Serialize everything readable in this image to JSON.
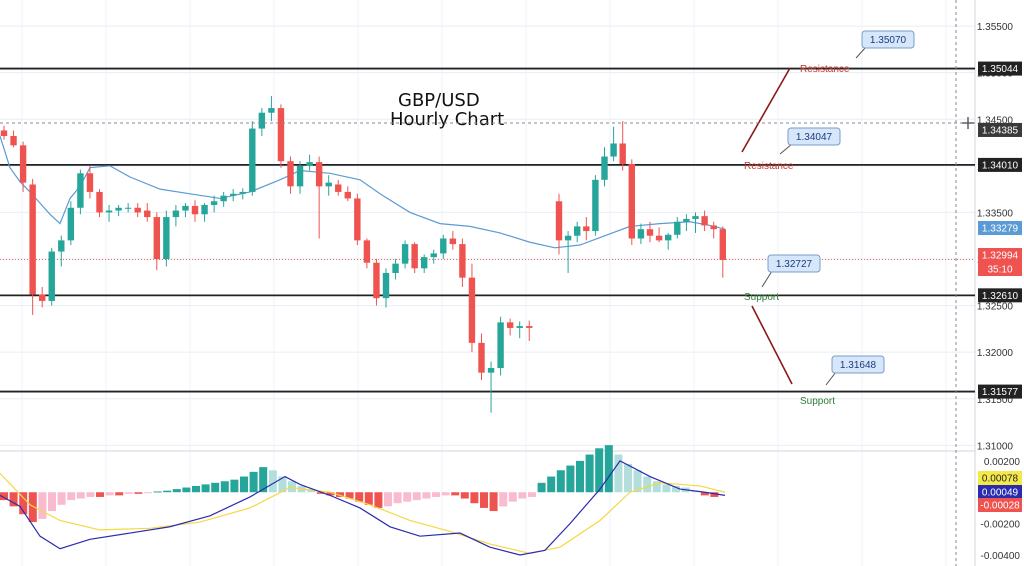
{
  "chart_data": [
    {
      "type": "candlestick",
      "title": [
        "GBP/USD",
        "Hourly Chart"
      ],
      "y_ticks": [
        "1.35500",
        "1.35000",
        "1.34500",
        "1.34000",
        "1.33500",
        "1.33000",
        "1.32500",
        "1.32000",
        "1.31500",
        "1.31000"
      ],
      "ylim": [
        1.3095,
        1.3578
      ],
      "candles": [
        [
          1.3438,
          1.3443,
          1.3428,
          1.3432
        ],
        [
          1.3432,
          1.3438,
          1.342,
          1.3422
        ],
        [
          1.3422,
          1.3426,
          1.3372,
          1.3382
        ],
        [
          1.338,
          1.3386,
          1.324,
          1.3262
        ],
        [
          1.3262,
          1.327,
          1.3248,
          1.3255
        ],
        [
          1.3255,
          1.3312,
          1.325,
          1.3308
        ],
        [
          1.3308,
          1.3325,
          1.3292,
          1.332
        ],
        [
          1.332,
          1.3362,
          1.3315,
          1.3355
        ],
        [
          1.3355,
          1.3396,
          1.3348,
          1.3392
        ],
        [
          1.3392,
          1.34,
          1.3365,
          1.3372
        ],
        [
          1.3372,
          1.3375,
          1.3345,
          1.335
        ],
        [
          1.335,
          1.3358,
          1.334,
          1.3352
        ],
        [
          1.3352,
          1.3358,
          1.3346,
          1.3355
        ],
        [
          1.3355,
          1.336,
          1.335,
          1.3355
        ],
        [
          1.3355,
          1.336,
          1.3345,
          1.335
        ],
        [
          1.3352,
          1.336,
          1.334,
          1.3345
        ],
        [
          1.3345,
          1.335,
          1.3288,
          1.33
        ],
        [
          1.33,
          1.3352,
          1.3292,
          1.3345
        ],
        [
          1.3345,
          1.3358,
          1.3335,
          1.3352
        ],
        [
          1.3352,
          1.336,
          1.3345,
          1.3357
        ],
        [
          1.3357,
          1.3363,
          1.334,
          1.3348
        ],
        [
          1.3348,
          1.336,
          1.334,
          1.3358
        ],
        [
          1.3358,
          1.3368,
          1.335,
          1.3362
        ],
        [
          1.3362,
          1.3372,
          1.3356,
          1.3368
        ],
        [
          1.3368,
          1.3375,
          1.3362,
          1.337
        ],
        [
          1.337,
          1.3376,
          1.3364,
          1.3372
        ],
        [
          1.3372,
          1.3448,
          1.3368,
          1.344
        ],
        [
          1.344,
          1.3462,
          1.3432,
          1.3457
        ],
        [
          1.3457,
          1.3475,
          1.3448,
          1.3462
        ],
        [
          1.3462,
          1.3466,
          1.3398,
          1.3405
        ],
        [
          1.3405,
          1.341,
          1.337,
          1.3378
        ],
        [
          1.3378,
          1.3405,
          1.337,
          1.34
        ],
        [
          1.34,
          1.3412,
          1.3395,
          1.3404
        ],
        [
          1.3404,
          1.341,
          1.3322,
          1.3378
        ],
        [
          1.3378,
          1.339,
          1.3368,
          1.3382
        ],
        [
          1.338,
          1.3385,
          1.3368,
          1.3372
        ],
        [
          1.3372,
          1.3378,
          1.3362,
          1.3365
        ],
        [
          1.3365,
          1.337,
          1.3315,
          1.332
        ],
        [
          1.332,
          1.3322,
          1.329,
          1.3296
        ],
        [
          1.3296,
          1.33,
          1.325,
          1.3258
        ],
        [
          1.3258,
          1.329,
          1.3248,
          1.3285
        ],
        [
          1.3285,
          1.33,
          1.3278,
          1.3295
        ],
        [
          1.3295,
          1.332,
          1.329,
          1.3316
        ],
        [
          1.3316,
          1.3318,
          1.3285,
          1.329
        ],
        [
          1.329,
          1.3305,
          1.3285,
          1.3302
        ],
        [
          1.3302,
          1.331,
          1.3295,
          1.3306
        ],
        [
          1.3306,
          1.3326,
          1.33,
          1.3322
        ],
        [
          1.3322,
          1.333,
          1.331,
          1.3316
        ],
        [
          1.3316,
          1.3322,
          1.327,
          1.328
        ],
        [
          1.328,
          1.3295,
          1.32,
          1.321
        ],
        [
          1.321,
          1.322,
          1.317,
          1.3178
        ],
        [
          1.3178,
          1.319,
          1.3135,
          1.3183
        ],
        [
          1.3183,
          1.3238,
          1.3175,
          1.3232
        ],
        [
          1.3232,
          1.3236,
          1.3218,
          1.3226
        ],
        [
          1.3226,
          1.3233,
          1.3215,
          1.3228
        ],
        [
          1.3228,
          1.3234,
          1.3212,
          1.3226
        ],
        [
          1.3362,
          1.337,
          1.3305,
          1.332
        ],
        [
          1.332,
          1.333,
          1.3285,
          1.3325
        ],
        [
          1.3325,
          1.334,
          1.3318,
          1.3335
        ],
        [
          1.3335,
          1.3345,
          1.332,
          1.333
        ],
        [
          1.333,
          1.339,
          1.3325,
          1.3385
        ],
        [
          1.3385,
          1.342,
          1.3378,
          1.341
        ],
        [
          1.341,
          1.3442,
          1.3405,
          1.3424
        ],
        [
          1.3424,
          1.3448,
          1.3395,
          1.3402
        ],
        [
          1.3402,
          1.3407,
          1.3315,
          1.3322
        ],
        [
          1.3322,
          1.3338,
          1.3316,
          1.3332
        ],
        [
          1.3332,
          1.334,
          1.3318,
          1.3325
        ],
        [
          1.3325,
          1.3334,
          1.3318,
          1.332
        ],
        [
          1.332,
          1.3328,
          1.331,
          1.3326
        ],
        [
          1.3326,
          1.3345,
          1.3322,
          1.334
        ],
        [
          1.334,
          1.3348,
          1.333,
          1.3343
        ],
        [
          1.3343,
          1.335,
          1.3328,
          1.3346
        ],
        [
          1.3346,
          1.3352,
          1.333,
          1.3336
        ],
        [
          1.3336,
          1.334,
          1.3322,
          1.3332
        ],
        [
          1.3332,
          1.3335,
          1.328,
          1.3299
        ]
      ],
      "moving_average": [
        [
          0,
          1.3432
        ],
        [
          10,
          1.3398
        ],
        [
          20,
          1.3383
        ],
        [
          30,
          1.3372
        ],
        [
          40,
          1.336
        ],
        [
          50,
          1.3348
        ],
        [
          60,
          1.3338
        ],
        [
          70,
          1.3365
        ],
        [
          80,
          1.3378
        ],
        [
          90,
          1.3398
        ],
        [
          110,
          1.34
        ],
        [
          130,
          1.3388
        ],
        [
          160,
          1.3375
        ],
        [
          190,
          1.337
        ],
        [
          220,
          1.3365
        ],
        [
          250,
          1.3372
        ],
        [
          280,
          1.3385
        ],
        [
          300,
          1.3395
        ],
        [
          330,
          1.3392
        ],
        [
          360,
          1.3385
        ],
        [
          380,
          1.337
        ],
        [
          410,
          1.335
        ],
        [
          440,
          1.3338
        ],
        [
          470,
          1.3335
        ],
        [
          500,
          1.3328
        ],
        [
          530,
          1.3318
        ],
        [
          555,
          1.3312
        ],
        [
          580,
          1.3315
        ],
        [
          605,
          1.3325
        ],
        [
          630,
          1.3335
        ],
        [
          660,
          1.3338
        ],
        [
          690,
          1.334
        ],
        [
          710,
          1.3336
        ],
        [
          725,
          1.3332
        ]
      ],
      "horizontal_levels": [
        1.35044,
        1.3401,
        1.3261,
        1.31577
      ],
      "dotted_levels": [
        1.34385,
        1.32994
      ],
      "price_labels": [
        "1.35044",
        "1.34385",
        "1.34010",
        "1.33279",
        "1.32994",
        "1.32610",
        "1.31577"
      ],
      "countdown": "35:10",
      "callouts": [
        "1.35070",
        "1.34047",
        "1.32727",
        "1.31648"
      ],
      "annotations": {
        "resistance_top": "Resistance",
        "resistance_mid": "Resistance",
        "support_mid": "Support",
        "support_bottom": "Support"
      },
      "colors": {
        "up": "#26a69a",
        "down": "#ef5350",
        "ma": "#5b9bd5",
        "level": "#222222",
        "trend": "#8b1a1a"
      }
    },
    {
      "type": "histogram",
      "title": "",
      "y_ticks": [
        "0.00200",
        "-0.00200",
        "-0.00400"
      ],
      "ylim": [
        -0.0047,
        0.0025
      ],
      "price_labels": [
        "0.00078",
        "0.00049",
        "-0.00028"
      ],
      "histogram": [
        -0.0005,
        -0.0009,
        -0.0014,
        -0.0019,
        -0.0017,
        -0.0012,
        -0.0008,
        -0.0005,
        -0.0004,
        -0.0003,
        -0.0003,
        -0.0002,
        -0.0002,
        -0.0001,
        -0.0001,
        -5e-05,
        5e-05,
        0.0001,
        0.0002,
        0.0003,
        0.0004,
        0.0005,
        0.0006,
        0.0007,
        0.0008,
        0.001,
        0.0013,
        0.0016,
        0.0014,
        0.001,
        0.0007,
        0.0004,
        0.0002,
        -0.0001,
        -0.0002,
        -0.0003,
        -0.0004,
        -0.0006,
        -0.0008,
        -0.001,
        -0.0009,
        -0.0007,
        -0.0006,
        -0.0005,
        -0.0004,
        -0.0003,
        -0.0002,
        -0.0002,
        -0.0004,
        -0.0007,
        -0.001,
        -0.0012,
        -0.0009,
        -0.0006,
        -0.0004,
        -0.0003,
        0.0006,
        0.001,
        0.0014,
        0.0017,
        0.002,
        0.0024,
        0.0028,
        0.003,
        0.0024,
        0.0018,
        0.0014,
        0.001,
        0.0007,
        0.0005,
        0.0004,
        0.0003,
        0.0001,
        -0.0002,
        -0.0003
      ],
      "macd_line": [
        [
          0,
          -0.0002
        ],
        [
          20,
          -0.0009
        ],
        [
          40,
          -0.0028
        ],
        [
          60,
          -0.0036
        ],
        [
          90,
          -0.003
        ],
        [
          130,
          -0.0026
        ],
        [
          170,
          -0.0022
        ],
        [
          210,
          -0.0015
        ],
        [
          250,
          -0.0003
        ],
        [
          285,
          0.001
        ],
        [
          300,
          0.0005
        ],
        [
          330,
          -0.0002
        ],
        [
          360,
          -0.001
        ],
        [
          390,
          -0.0022
        ],
        [
          420,
          -0.0028
        ],
        [
          460,
          -0.0026
        ],
        [
          490,
          -0.0035
        ],
        [
          520,
          -0.004
        ],
        [
          545,
          -0.0037
        ],
        [
          570,
          -0.002
        ],
        [
          600,
          0.0002
        ],
        [
          620,
          0.002
        ],
        [
          650,
          0.001
        ],
        [
          680,
          0.0002
        ],
        [
          705,
          0.0
        ],
        [
          725,
          -0.0002
        ]
      ],
      "signal_line": [
        [
          0,
          0.0012
        ],
        [
          30,
          -0.0008
        ],
        [
          60,
          -0.0018
        ],
        [
          100,
          -0.0024
        ],
        [
          150,
          -0.0023
        ],
        [
          200,
          -0.0019
        ],
        [
          250,
          -0.001
        ],
        [
          290,
          0.0003
        ],
        [
          330,
          0.0
        ],
        [
          370,
          -0.0008
        ],
        [
          410,
          -0.0018
        ],
        [
          450,
          -0.0025
        ],
        [
          490,
          -0.0033
        ],
        [
          530,
          -0.0039
        ],
        [
          560,
          -0.0035
        ],
        [
          600,
          -0.0018
        ],
        [
          630,
          0.0
        ],
        [
          660,
          0.0006
        ],
        [
          700,
          0.0004
        ],
        [
          725,
          0.0
        ]
      ],
      "colors": {
        "up_strong": "#26a69a",
        "up_weak": "#b2dfdb",
        "down_strong": "#ef5350",
        "down_weak": "#f8bbd0",
        "macd": "#2b2bb0",
        "signal": "#f5d742"
      }
    }
  ]
}
